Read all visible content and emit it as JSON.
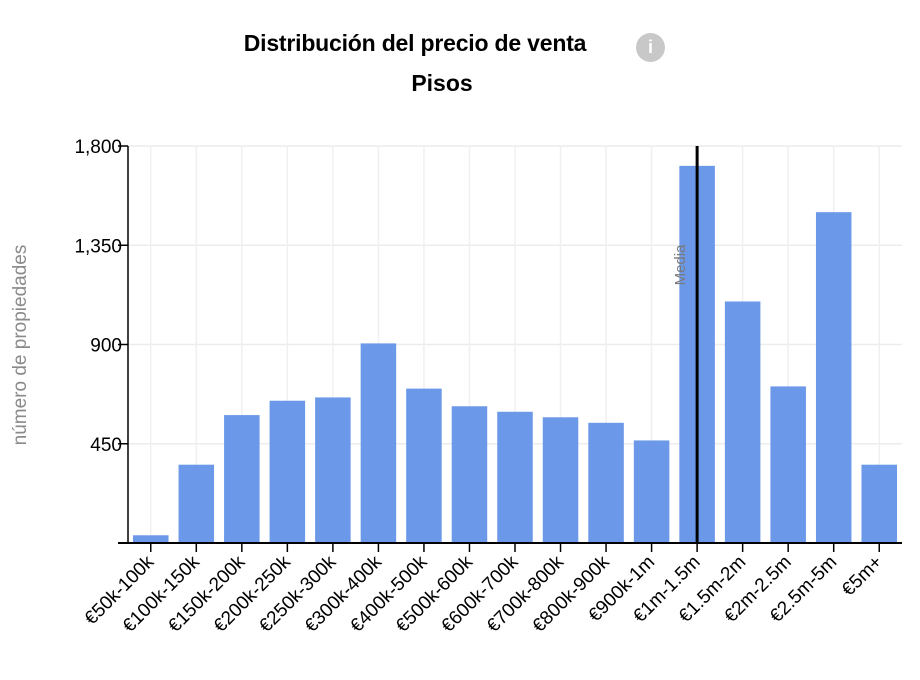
{
  "header": {
    "title": "Distribución del precio de venta",
    "subtitle": "Pisos",
    "info_icon": "info-icon"
  },
  "chart_data": {
    "type": "bar",
    "title": "Distribución del precio de venta",
    "subtitle": "Pisos",
    "xlabel": "",
    "ylabel": "número de propiedades",
    "ylim": [
      0,
      1800
    ],
    "yticks": [
      450,
      900,
      1350,
      1800
    ],
    "ytick_labels": [
      "450",
      "900",
      "1,350",
      "1,800"
    ],
    "grid": true,
    "bar_color": "#6b98e8",
    "categories": [
      "€50k-100k",
      "€100k-150k",
      "€150k-200k",
      "€200k-250k",
      "€250k-300k",
      "€300k-400k",
      "€400k-500k",
      "€500k-600k",
      "€600k-700k",
      "€700k-800k",
      "€800k-900k",
      "€900k-1m",
      "€1m-1.5m",
      "€1.5m-2m",
      "€2m-2.5m",
      "€2.5m-5m",
      "€5m+"
    ],
    "values": [
      35,
      355,
      580,
      645,
      660,
      905,
      700,
      620,
      595,
      570,
      545,
      465,
      1710,
      1095,
      710,
      1500,
      355
    ],
    "median": {
      "label": "Media",
      "category_boundary": "€1m-1.5m"
    }
  }
}
